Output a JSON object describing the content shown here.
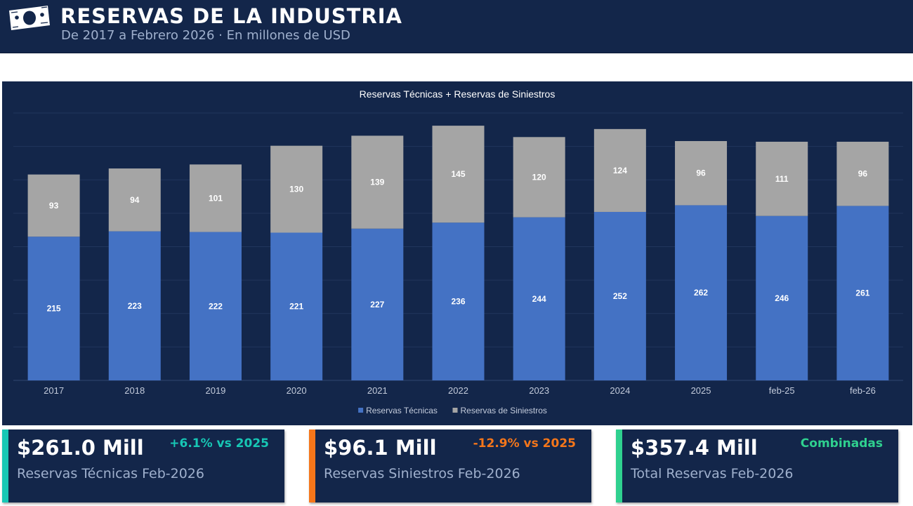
{
  "header": {
    "title": "RESERVAS DE LA INDUSTRIA",
    "subtitle": "De 2017 a Febrero 2026 · En millones de USD",
    "icon": "money-bill-icon"
  },
  "colors": {
    "background": "#13264a",
    "technical": "#4472c4",
    "claims": "#a5a5a5",
    "teal": "#17c7b5",
    "orange": "#f5761a",
    "green": "#2fd08f"
  },
  "chart_data": {
    "type": "bar",
    "stacked": true,
    "title": "Reservas Técnicas + Reservas de Siniestros",
    "categories": [
      "2017",
      "2018",
      "2019",
      "2020",
      "2021",
      "2022",
      "2023",
      "2024",
      "2025",
      "feb-25",
      "feb-26"
    ],
    "series": [
      {
        "name": "Reservas Técnicas",
        "color": "#4472c4",
        "values": [
          215,
          223,
          222,
          221,
          227,
          236,
          244,
          252,
          262,
          246,
          261
        ]
      },
      {
        "name": "Reservas de Siniestros",
        "color": "#a5a5a5",
        "values": [
          93,
          94,
          101,
          130,
          139,
          145,
          120,
          124,
          96,
          111,
          96
        ]
      }
    ],
    "ylim": [
      0,
      400
    ],
    "y_axis_visible": false,
    "grid": true,
    "legend": "bottom",
    "data_labels": true
  },
  "kpis": [
    {
      "value": "$261.0 Mill",
      "change": "+6.1% vs 2025",
      "label": "Reservas Técnicas Feb-2026",
      "accent": "#17c7b5",
      "change_color": "#17c7b5"
    },
    {
      "value": "$96.1 Mill",
      "change": "-12.9% vs 2025",
      "label": "Reservas Siniestros Feb-2026",
      "accent": "#f5761a",
      "change_color": "#f5761a"
    },
    {
      "value": "$357.4 Mill",
      "change": "Combinadas",
      "label": "Total Reservas Feb-2026",
      "accent": "#2fd08f",
      "change_color": "#2fd08f"
    }
  ]
}
